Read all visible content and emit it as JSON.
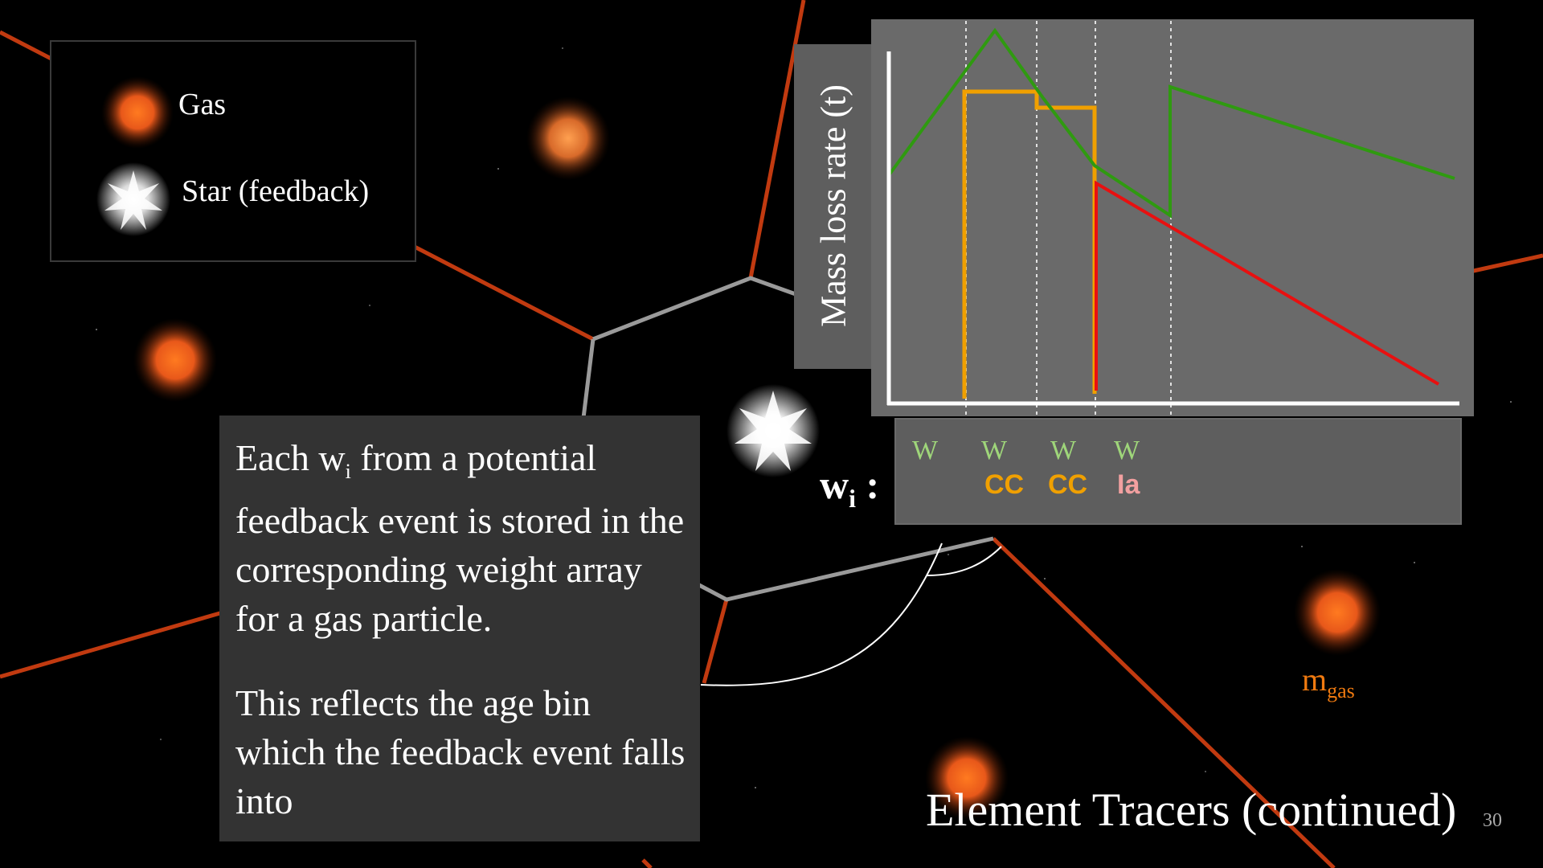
{
  "legend": {
    "gas_label": "Gas",
    "star_label": "Star (feedback)"
  },
  "plot": {
    "ylabel": "Mass loss rate (t)",
    "series_colors": {
      "winds": "#2f9a10",
      "core_collapse": "#f0a000",
      "type_ia": "#e81010"
    }
  },
  "weights": {
    "label_w": "w",
    "label_sub": "i",
    "colon": ":",
    "bins": [
      {
        "w": "W",
        "type": ""
      },
      {
        "w": "W",
        "type": "CC"
      },
      {
        "w": "W",
        "type": "CC"
      },
      {
        "w": "W",
        "type": "Ia"
      }
    ],
    "colors": {
      "W": "#9fd67a",
      "CC": "#f0a000",
      "Ia": "#f2a0a0"
    }
  },
  "text": {
    "p1_a": "Each w",
    "p1_sub": "i",
    "p1_b": " from a potential feedback event is stored in the corresponding weight array for a gas particle.",
    "p2": "This reflects the age bin which the feedback event falls into"
  },
  "mgas": {
    "m": "m",
    "sub": "gas"
  },
  "title": "Element Tracers (continued)",
  "slide_number": "30"
}
